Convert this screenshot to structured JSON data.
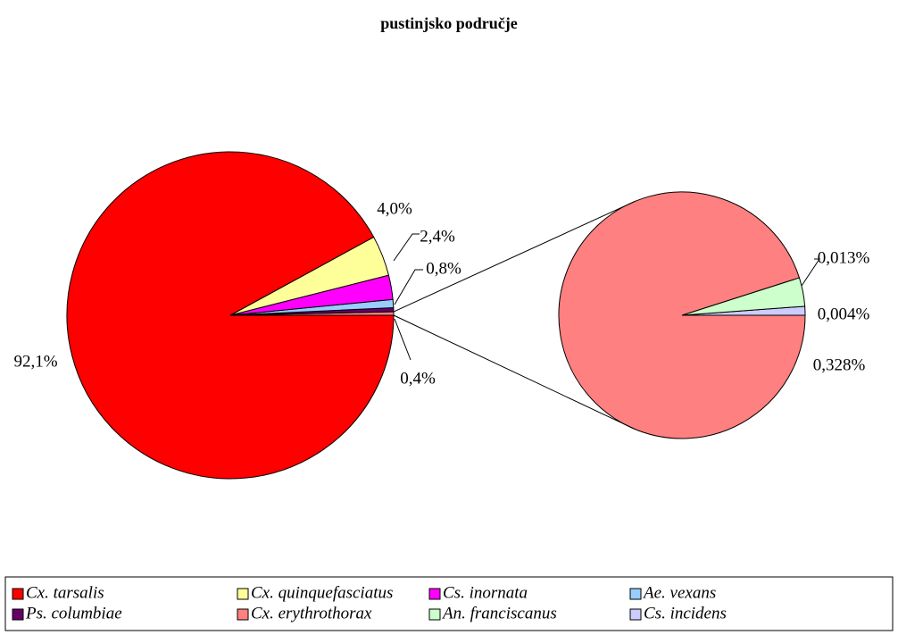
{
  "chart_data": {
    "type": "pie-of-pie",
    "title": "pustinjsko područje",
    "main": {
      "categories": [
        "Cx. tarsalis",
        "Cx. quinquefasciatus",
        "Cs. inornata",
        "Ae. vexans",
        "Ps. columbiae"
      ],
      "values": [
        92.1,
        4.0,
        2.4,
        0.8,
        0.4
      ],
      "value_labels": [
        "92,1%",
        "4,0%",
        "2,4%",
        "0,8%",
        "0,4%"
      ],
      "colors": [
        "#ff0000",
        "#ffff99",
        "#ff00ff",
        "#99ccff",
        "#660066"
      ]
    },
    "secondary": {
      "categories": [
        "Cx. erythrothorax",
        "An. franciscanus",
        "Cs. incidens"
      ],
      "values": [
        0.328,
        0.013,
        0.004
      ],
      "value_labels": [
        "0,328%",
        "0,013%",
        "0,004%"
      ],
      "colors": [
        "#ff8080",
        "#ccffcc",
        "#ccccff"
      ]
    },
    "legend": "bottom"
  }
}
